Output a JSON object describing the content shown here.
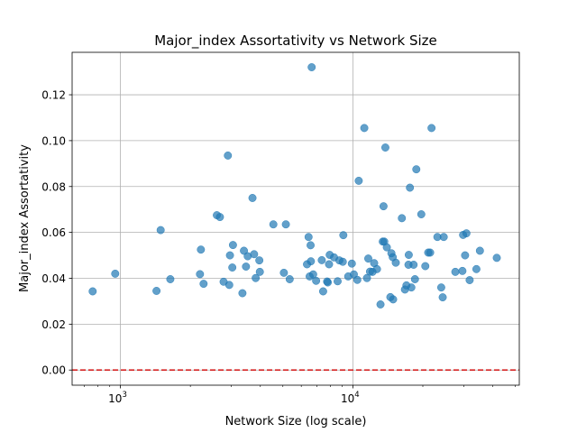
{
  "chart_data": {
    "type": "scatter",
    "title": "Major_index Assortativity vs Network Size",
    "xlabel": "Network Size (log scale)",
    "ylabel": "Major_index Assortativity",
    "x_scale": "log",
    "xlim": [
      620,
      52000
    ],
    "ylim": [
      -0.0066,
      0.1385
    ],
    "x_ticks": [
      {
        "value": 1000,
        "base": "10",
        "exp": "3"
      },
      {
        "value": 10000,
        "base": "10",
        "exp": "4"
      }
    ],
    "y_ticks": [
      0.0,
      0.02,
      0.04,
      0.06,
      0.08,
      0.1,
      0.12
    ],
    "y_tick_labels": [
      "0.00",
      "0.02",
      "0.04",
      "0.06",
      "0.08",
      "0.10",
      "0.12"
    ],
    "grid": true,
    "point_color": "#1f77b4",
    "reference_line": {
      "y": 0.0,
      "color": "#d62728",
      "style": "dashed"
    },
    "points": [
      [
        760,
        0.0343
      ],
      [
        950,
        0.042
      ],
      [
        1430,
        0.0345
      ],
      [
        1490,
        0.061
      ],
      [
        1640,
        0.0396
      ],
      [
        2200,
        0.0418
      ],
      [
        2220,
        0.0525
      ],
      [
        2280,
        0.0376
      ],
      [
        2600,
        0.0675
      ],
      [
        2680,
        0.0667
      ],
      [
        2780,
        0.0385
      ],
      [
        2900,
        0.0935
      ],
      [
        2940,
        0.0371
      ],
      [
        2960,
        0.05
      ],
      [
        3030,
        0.0447
      ],
      [
        3050,
        0.0545
      ],
      [
        3350,
        0.0335
      ],
      [
        3400,
        0.052
      ],
      [
        3470,
        0.0451
      ],
      [
        3530,
        0.0496
      ],
      [
        3700,
        0.075
      ],
      [
        3760,
        0.0505
      ],
      [
        3820,
        0.0401
      ],
      [
        3960,
        0.0478
      ],
      [
        3980,
        0.0428
      ],
      [
        4550,
        0.0635
      ],
      [
        5050,
        0.0424
      ],
      [
        5150,
        0.0635
      ],
      [
        5350,
        0.0396
      ],
      [
        6350,
        0.0461
      ],
      [
        6450,
        0.058
      ],
      [
        6520,
        0.0408
      ],
      [
        6580,
        0.0544
      ],
      [
        6600,
        0.0474
      ],
      [
        6650,
        0.132
      ],
      [
        6750,
        0.0417
      ],
      [
        6950,
        0.0389
      ],
      [
        7350,
        0.0479
      ],
      [
        7450,
        0.0343
      ],
      [
        7750,
        0.0386
      ],
      [
        7800,
        0.0382
      ],
      [
        7900,
        0.0461
      ],
      [
        7950,
        0.0502
      ],
      [
        8300,
        0.0491
      ],
      [
        8600,
        0.0387
      ],
      [
        8750,
        0.0478
      ],
      [
        9050,
        0.0472
      ],
      [
        9100,
        0.0588
      ],
      [
        9550,
        0.0408
      ],
      [
        9900,
        0.0464
      ],
      [
        10100,
        0.0417
      ],
      [
        10450,
        0.0393
      ],
      [
        10600,
        0.0825
      ],
      [
        11200,
        0.1055
      ],
      [
        11500,
        0.0401
      ],
      [
        11650,
        0.0486
      ],
      [
        11850,
        0.0429
      ],
      [
        12150,
        0.0428
      ],
      [
        12350,
        0.0466
      ],
      [
        12700,
        0.044
      ],
      [
        13150,
        0.0286
      ],
      [
        13450,
        0.056
      ],
      [
        13550,
        0.0714
      ],
      [
        13650,
        0.056
      ],
      [
        13800,
        0.097
      ],
      [
        14000,
        0.0535
      ],
      [
        14500,
        0.0318
      ],
      [
        14650,
        0.0509
      ],
      [
        14850,
        0.0492
      ],
      [
        14900,
        0.0308
      ],
      [
        15300,
        0.0468
      ],
      [
        16250,
        0.0662
      ],
      [
        16750,
        0.0351
      ],
      [
        17000,
        0.0369
      ],
      [
        17350,
        0.0459
      ],
      [
        17400,
        0.0502
      ],
      [
        17600,
        0.0795
      ],
      [
        17850,
        0.036
      ],
      [
        18250,
        0.0459
      ],
      [
        18500,
        0.0396
      ],
      [
        18750,
        0.0875
      ],
      [
        19700,
        0.0679
      ],
      [
        20500,
        0.0453
      ],
      [
        21100,
        0.0512
      ],
      [
        21500,
        0.0512
      ],
      [
        21800,
        0.1055
      ],
      [
        23100,
        0.058
      ],
      [
        24000,
        0.036
      ],
      [
        24350,
        0.0317
      ],
      [
        24600,
        0.058
      ],
      [
        27600,
        0.0428
      ],
      [
        29600,
        0.0432
      ],
      [
        29800,
        0.0589
      ],
      [
        30400,
        0.05
      ],
      [
        30800,
        0.0596
      ],
      [
        31800,
        0.0392
      ],
      [
        34000,
        0.044
      ],
      [
        35200,
        0.052
      ],
      [
        41600,
        0.0489
      ]
    ]
  }
}
